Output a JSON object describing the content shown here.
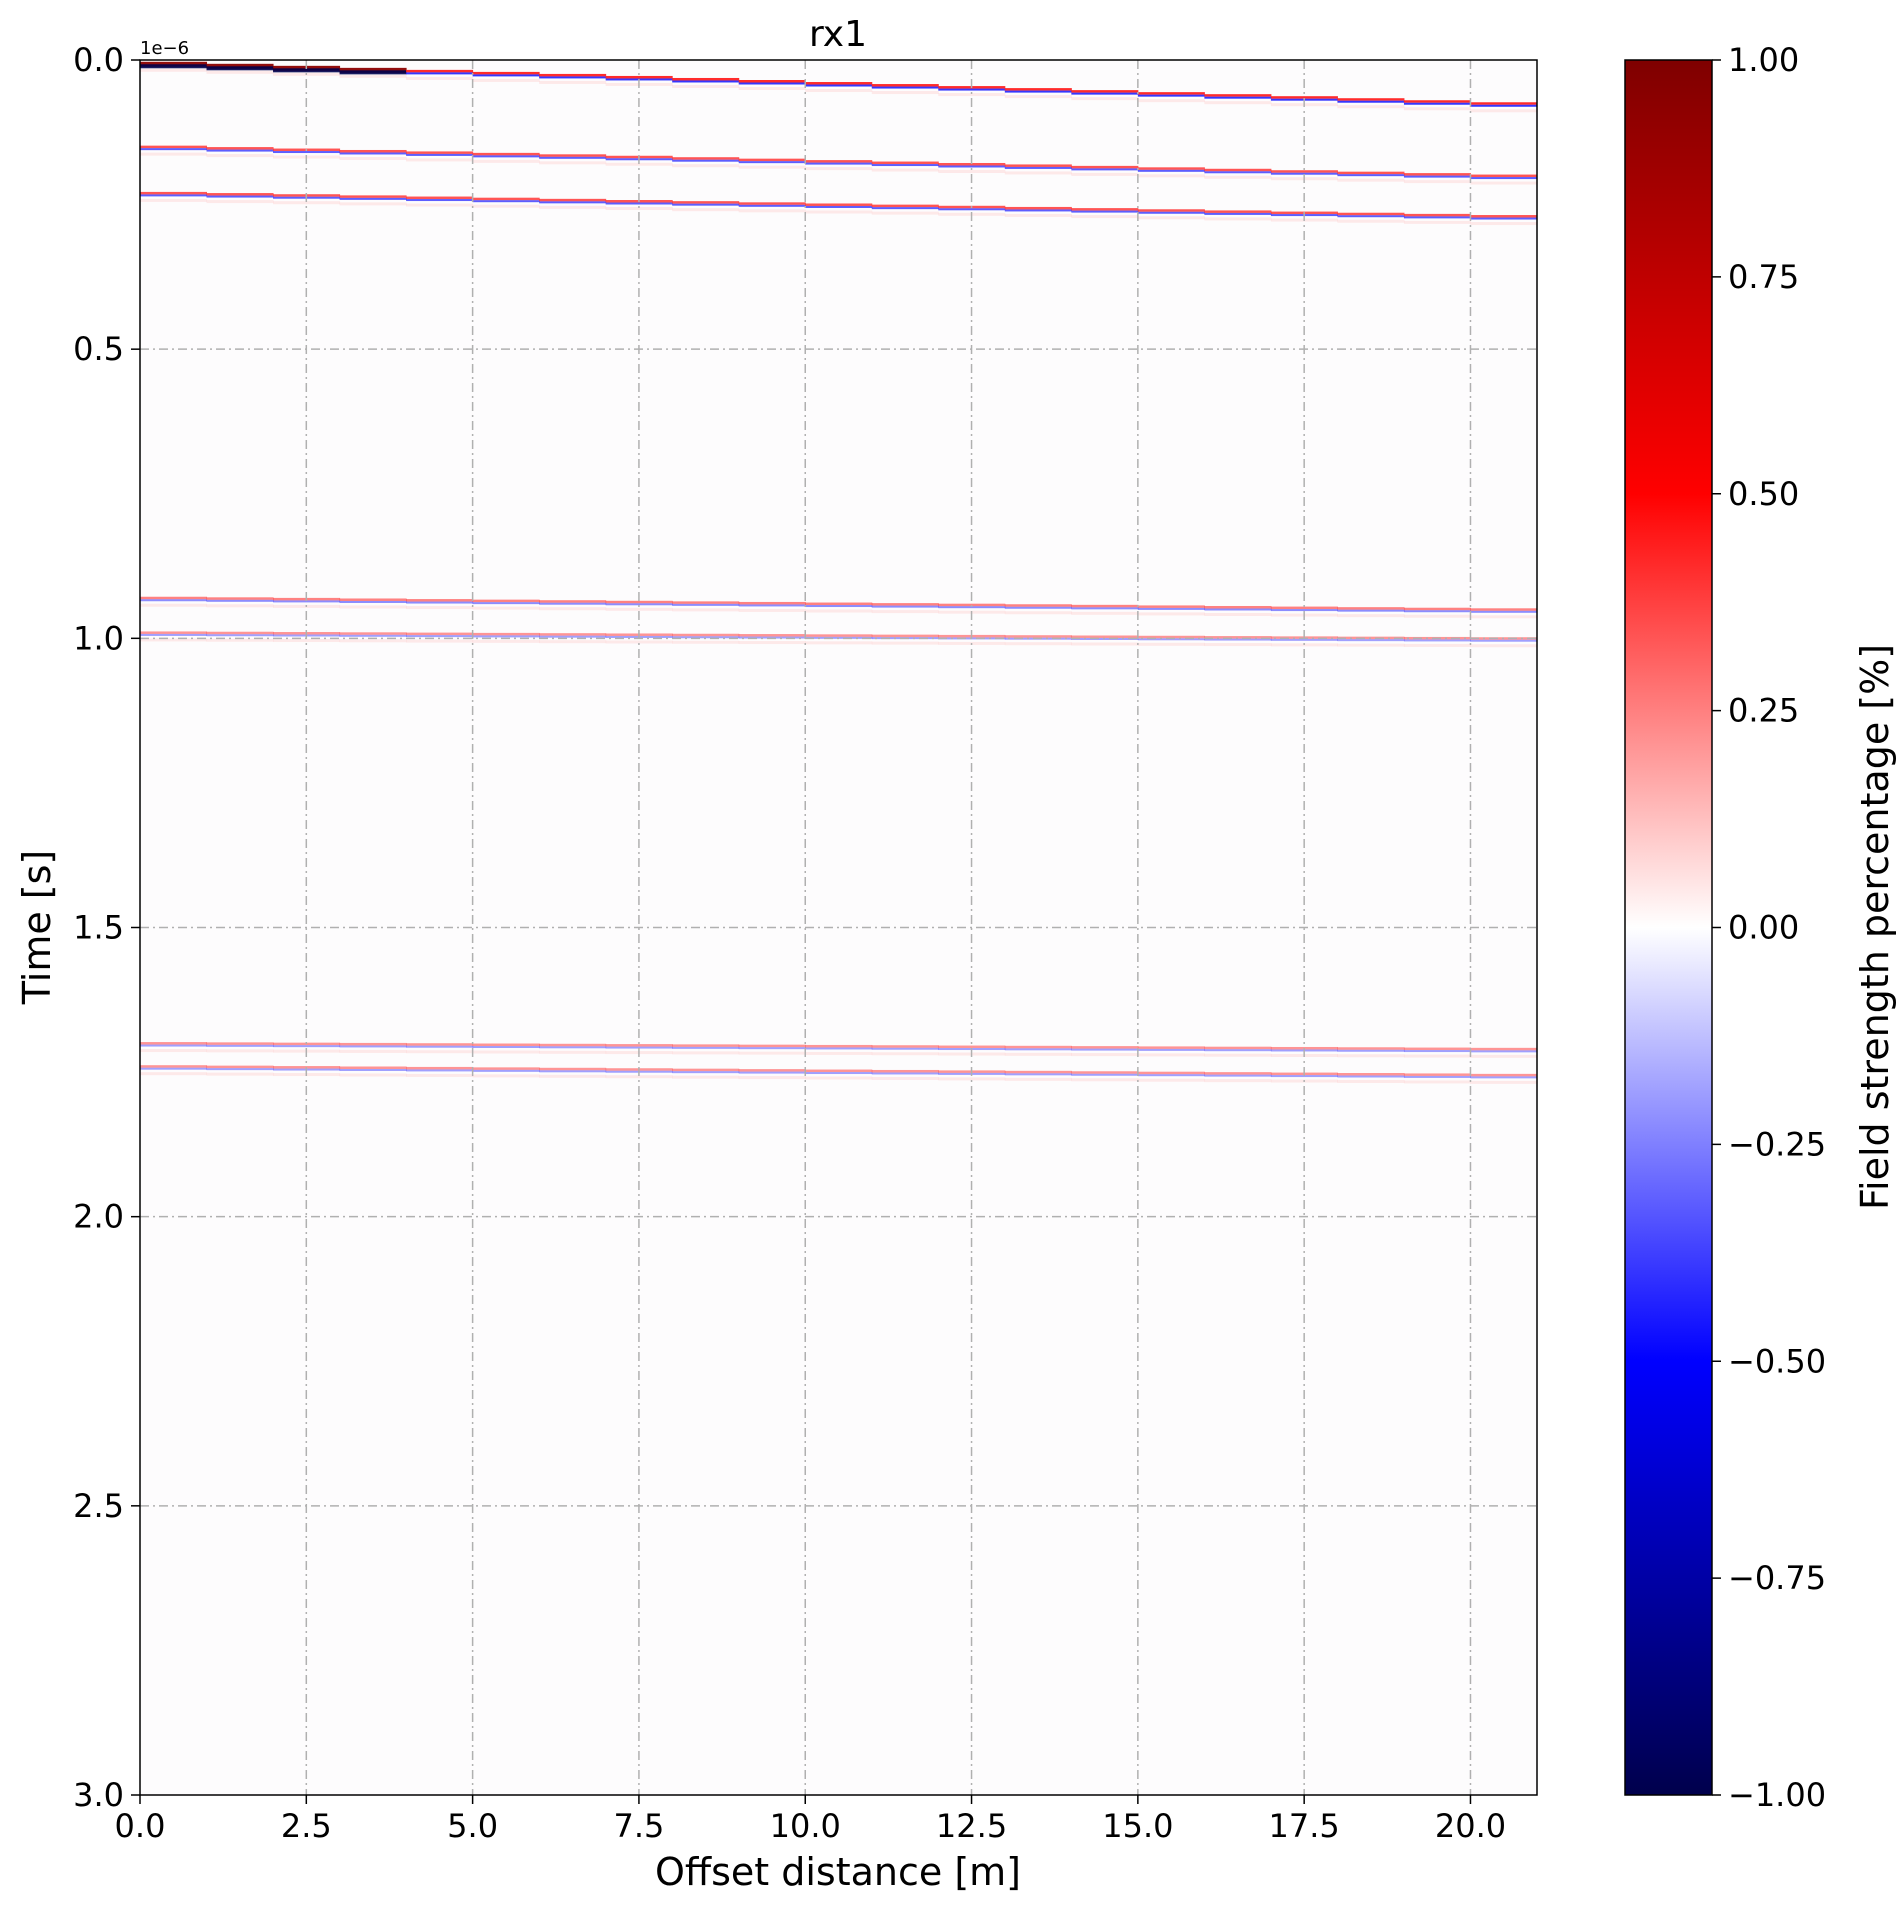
{
  "chart_data": {
    "type": "heatmap",
    "title": "rx1",
    "xlabel": "Offset distance [m]",
    "ylabel": "Time [s]",
    "y_offset_text": "1e−6",
    "xlim": [
      0,
      21
    ],
    "ylim": [
      3.0,
      0.0
    ],
    "y_inverted": true,
    "x_ticks": [
      0.0,
      2.5,
      5.0,
      7.5,
      10.0,
      12.5,
      15.0,
      17.5,
      20.0
    ],
    "x_tick_labels": [
      "0.0",
      "2.5",
      "5.0",
      "7.5",
      "10.0",
      "12.5",
      "15.0",
      "17.5",
      "20.0"
    ],
    "y_ticks": [
      0.0,
      0.5,
      1.0,
      1.5,
      2.0,
      2.5,
      3.0
    ],
    "y_tick_labels": [
      "0.0",
      "0.5",
      "1.0",
      "1.5",
      "2.0",
      "2.5",
      "3.0"
    ],
    "grid": true,
    "grid_style": "dash-dot",
    "trace_count": 21,
    "colormap": "seismic",
    "colorbar": {
      "label": "Field strength percentage [%]",
      "range": [
        -1.0,
        1.0
      ],
      "ticks": [
        1.0,
        0.75,
        0.5,
        0.25,
        0.0,
        -0.25,
        -0.5,
        -0.75,
        -1.0
      ],
      "tick_labels": [
        "1.00",
        "0.75",
        "0.50",
        "0.25",
        "0.00",
        "−0.25",
        "−0.50",
        "−0.75",
        "−1.00"
      ],
      "colors": [
        "#00004c",
        "#0000ff",
        "#ffffff",
        "#ff0000",
        "#7f0000"
      ]
    },
    "reflections": [
      {
        "t_start": 0.01,
        "t_end": 0.08,
        "amplitude": 1.0
      },
      {
        "t_start": 0.155,
        "t_end": 0.205,
        "amplitude": 0.7
      },
      {
        "t_start": 0.235,
        "t_end": 0.275,
        "amplitude": 0.7
      },
      {
        "t_start": 0.935,
        "t_end": 0.955,
        "amplitude": 0.35
      },
      {
        "t_start": 0.995,
        "t_end": 1.005,
        "amplitude": 0.2
      },
      {
        "t_start": 1.705,
        "t_end": 1.715,
        "amplitude": 0.2
      },
      {
        "t_start": 1.745,
        "t_end": 1.76,
        "amplitude": 0.2
      }
    ]
  }
}
